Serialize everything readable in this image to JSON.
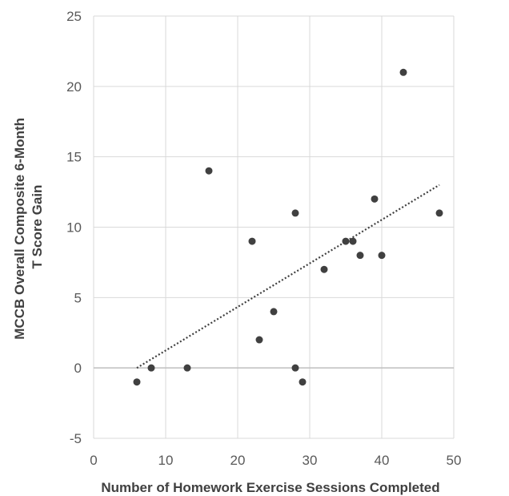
{
  "chart_data": {
    "type": "scatter",
    "title": "",
    "xlabel": "Number  of  Homework  Exercise  Sessions  Completed",
    "ylabel_lines": [
      "MCCB Overall Composite 6-Month",
      "T Score Gain"
    ],
    "xlim": [
      0,
      50
    ],
    "ylim": [
      -5,
      25
    ],
    "x_ticks": [
      0,
      10,
      20,
      30,
      40,
      50
    ],
    "y_ticks": [
      -5,
      0,
      5,
      10,
      15,
      20,
      25
    ],
    "grid": true,
    "legend": "none",
    "colors": {
      "points": "#404040",
      "trendline": "#404040",
      "grid": "#d9d9d9",
      "zero_line": "#bfbfbf"
    },
    "series": [
      {
        "points": [
          {
            "x": 6,
            "y": -1
          },
          {
            "x": 8,
            "y": 0
          },
          {
            "x": 13,
            "y": 0
          },
          {
            "x": 16,
            "y": 14
          },
          {
            "x": 22,
            "y": 9
          },
          {
            "x": 23,
            "y": 2
          },
          {
            "x": 25,
            "y": 4
          },
          {
            "x": 28,
            "y": 11
          },
          {
            "x": 28,
            "y": 0
          },
          {
            "x": 29,
            "y": -1
          },
          {
            "x": 32,
            "y": 7
          },
          {
            "x": 35,
            "y": 9
          },
          {
            "x": 36,
            "y": 9
          },
          {
            "x": 37,
            "y": 8
          },
          {
            "x": 39,
            "y": 12
          },
          {
            "x": 40,
            "y": 8
          },
          {
            "x": 43,
            "y": 21
          },
          {
            "x": 48,
            "y": 11
          }
        ]
      }
    ],
    "trendline": {
      "style": "dotted",
      "start": {
        "x": 6,
        "y": 0
      },
      "end": {
        "x": 48,
        "y": 13
      }
    }
  }
}
